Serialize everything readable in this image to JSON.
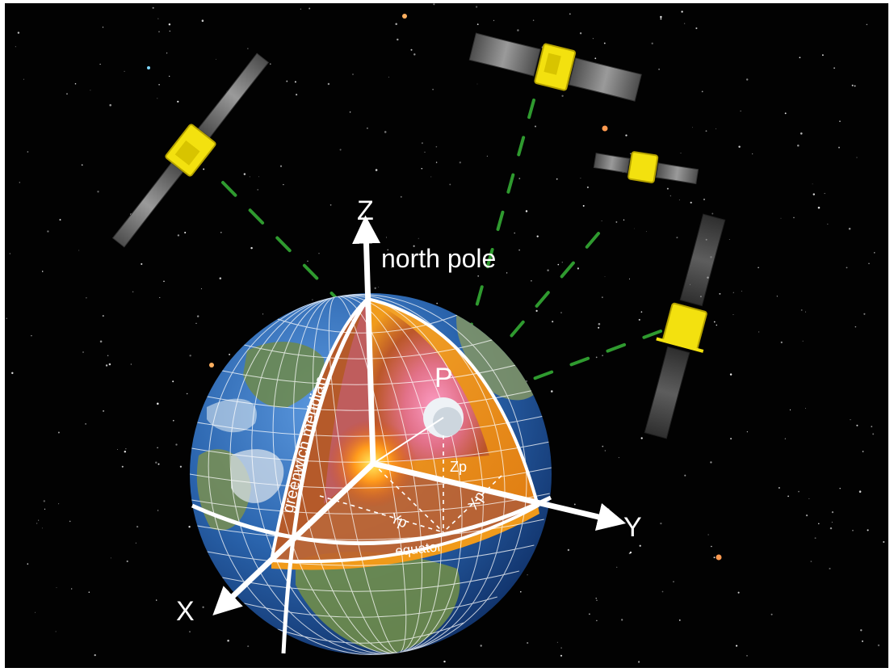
{
  "labels": {
    "z_axis": "Z",
    "north_pole": "north pole",
    "x_axis": "X",
    "y_axis": "Y",
    "point": "P",
    "greenwich": "greenwich meridian",
    "equator": "equator",
    "zp": "Zp",
    "yp": "Yp",
    "xp": "Xp"
  },
  "colors": {
    "space": "#020202",
    "ocean": "#2e6fb8",
    "core_orange": "#f39a18",
    "inner_pink": "#ee6fb0",
    "satellite": "#f3e10f",
    "solar_panel": "#6b6b6b",
    "signal": "#2f8f2f",
    "axis": "#ffffff"
  },
  "satellites": [
    {
      "name": "satellite-top-left"
    },
    {
      "name": "satellite-top-center"
    },
    {
      "name": "satellite-right-upper"
    },
    {
      "name": "satellite-right-lower"
    }
  ]
}
